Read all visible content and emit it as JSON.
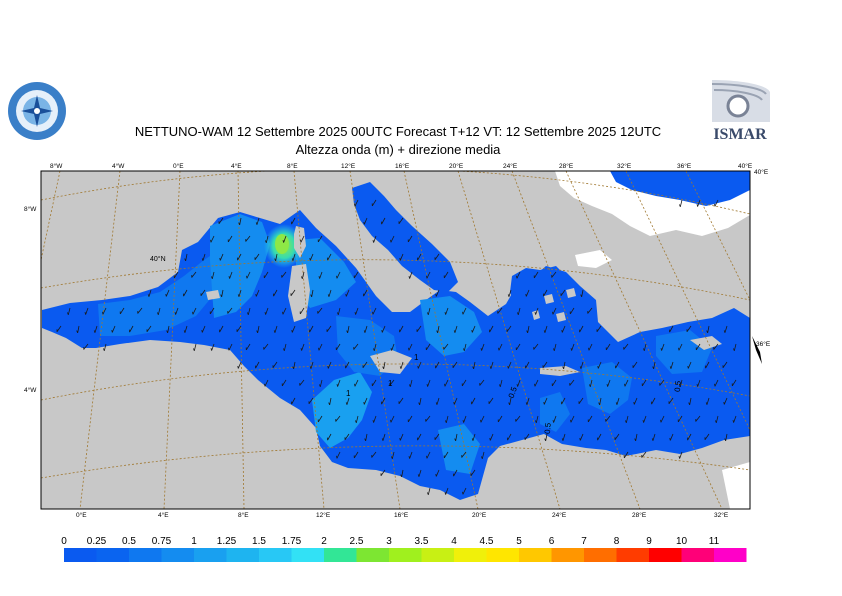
{
  "title": {
    "line1": "NETTUNO-WAM  12 Settembre 2025 00UTC Forecast T+12 VT: 12 Settembre 2025 12UTC",
    "line2": "Altezza onda (m) + direzione media"
  },
  "logos": {
    "left": "sea-emblem-logo",
    "right_text": "ISMAR"
  },
  "map": {
    "top_lon_labels": [
      "8°W",
      "4°W",
      "0°E",
      "4°E",
      "8°E",
      "12°E",
      "16°E",
      "20°E",
      "24°E",
      "28°E",
      "32°E",
      "36°E",
      "40°E"
    ],
    "bottom_lon_labels": [
      "0°E",
      "4°E",
      "8°E",
      "12°E",
      "16°E",
      "20°E",
      "24°E",
      "28°E",
      "32°E"
    ],
    "left_lat_labels": [
      "8°W",
      "4°W"
    ],
    "inner_lat_label": "40°N",
    "right_lat_labels": [
      "40°E",
      "36°E"
    ],
    "contour_labels": [
      "1",
      "1",
      "1",
      "0.5",
      "0.5",
      "0.5"
    ],
    "colors": {
      "land": "#c8c8c8",
      "ice": "#ffffff",
      "graticule": "#a07830"
    }
  },
  "legend": {
    "labels": [
      "0",
      "0.25",
      "0.5",
      "0.75",
      "1",
      "1.25",
      "1.5",
      "1.75",
      "2",
      "2.5",
      "3",
      "3.5",
      "4",
      "4.5",
      "5",
      "6",
      "7",
      "8",
      "9",
      "10",
      "11"
    ],
    "colors": [
      "#0a5af0",
      "#0a64f0",
      "#0f78f0",
      "#148cf0",
      "#19a0f0",
      "#1eb4f0",
      "#28c8f5",
      "#32e1f5",
      "#32e696",
      "#7de632",
      "#a0f01e",
      "#c8f014",
      "#f0f00a",
      "#ffe600",
      "#ffc800",
      "#ff9600",
      "#ff6e00",
      "#ff3c00",
      "#ff0000",
      "#ff0078",
      "#ff00c8"
    ]
  }
}
